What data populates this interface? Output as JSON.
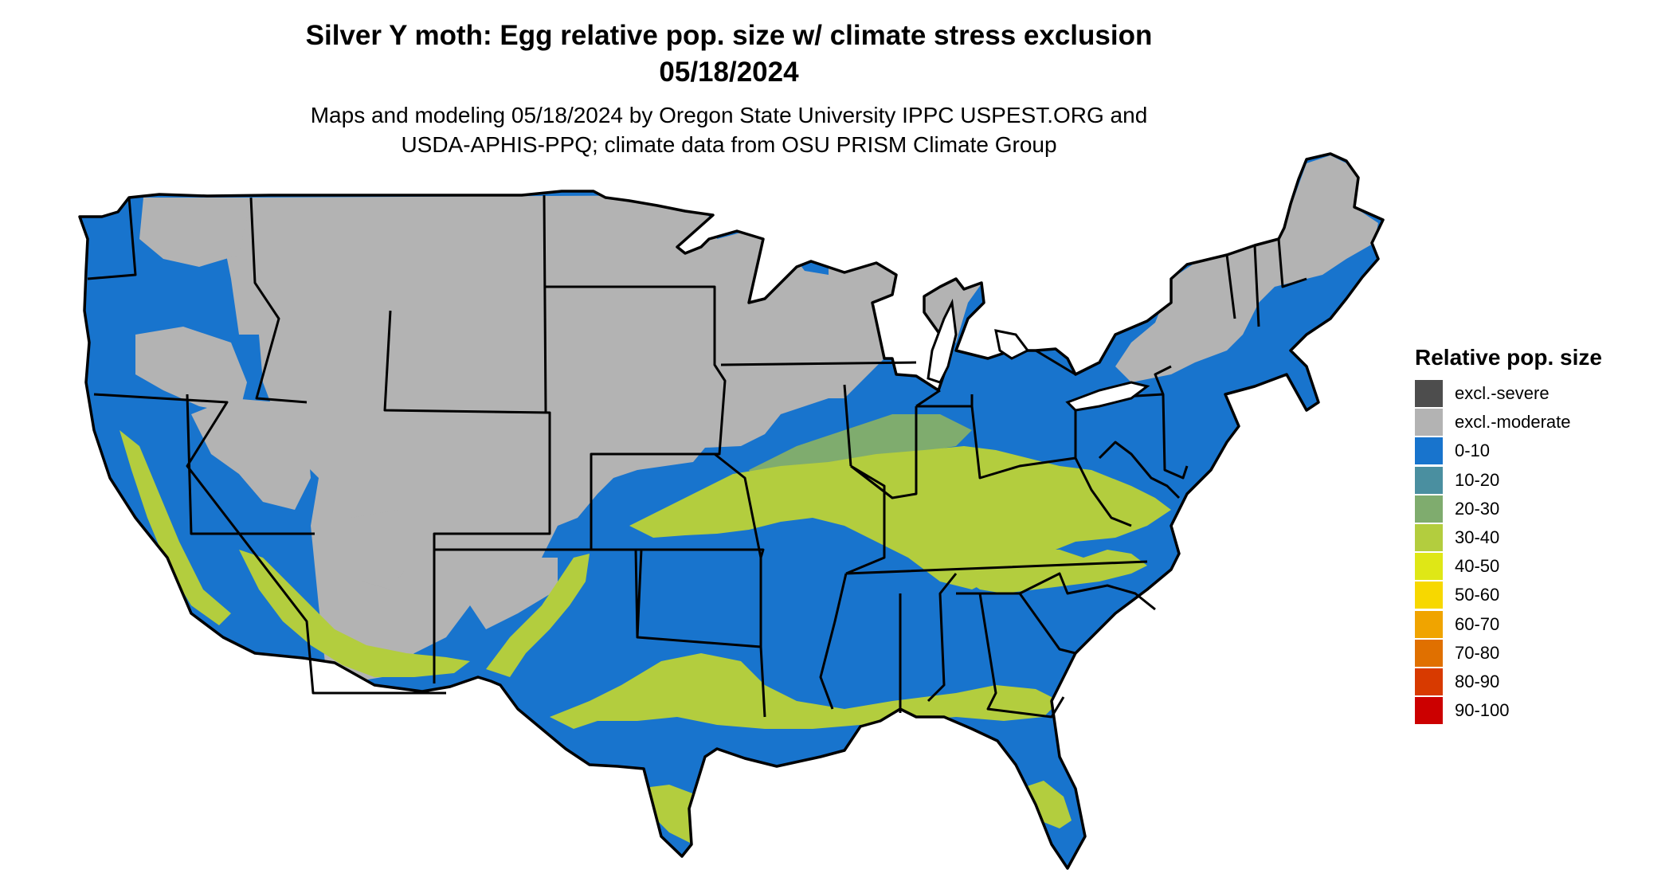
{
  "title": {
    "line1": "Silver Y moth: Egg relative pop. size w/ climate stress exclusion",
    "line2": "05/18/2024"
  },
  "subtitle": {
    "line1": "Maps and modeling 05/18/2024 by Oregon State University IPPC USPEST.ORG and",
    "line2": "USDA-APHIS-PPQ; climate data from OSU PRISM Climate Group"
  },
  "legend": {
    "title": "Relative pop. size",
    "items": [
      {
        "label": "excl.-severe",
        "color": "#4d4d4d"
      },
      {
        "label": "excl.-moderate",
        "color": "#b3b3b3"
      },
      {
        "label": "0-10",
        "color": "#1874cd"
      },
      {
        "label": "10-20",
        "color": "#4a8fa0"
      },
      {
        "label": "20-30",
        "color": "#7fac6e"
      },
      {
        "label": "30-40",
        "color": "#b3cd3e"
      },
      {
        "label": "40-50",
        "color": "#dfe716"
      },
      {
        "label": "50-60",
        "color": "#f7d800"
      },
      {
        "label": "60-70",
        "color": "#f0a400"
      },
      {
        "label": "70-80",
        "color": "#e07000"
      },
      {
        "label": "80-90",
        "color": "#d83a00"
      },
      {
        "label": "90-100",
        "color": "#cc0000"
      }
    ]
  },
  "map": {
    "region": "contiguous-united-states",
    "background_class": "0-10",
    "excluded_class": "excl.-moderate",
    "dominant_band_class": "30-40"
  }
}
